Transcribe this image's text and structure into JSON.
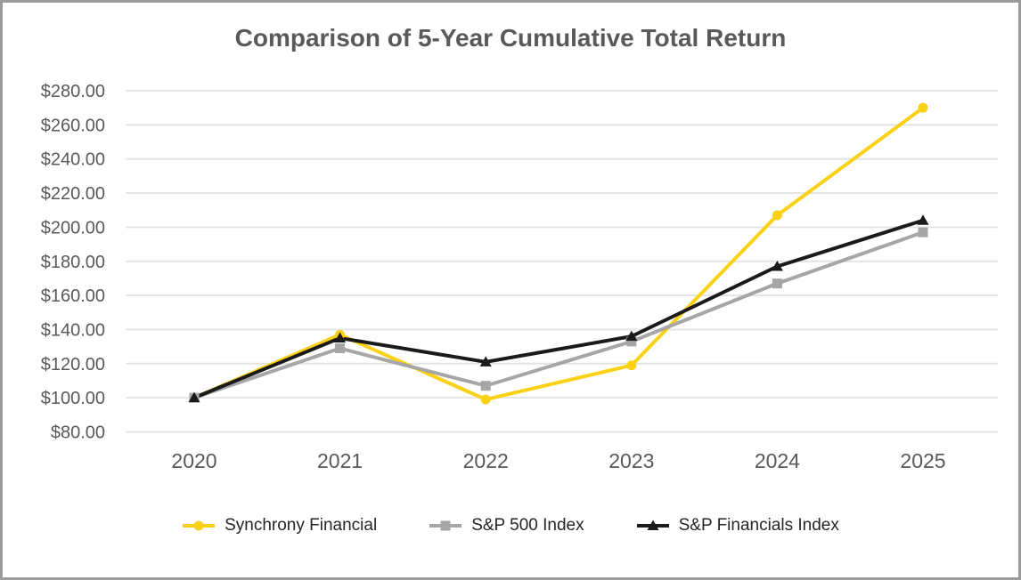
{
  "frame": {
    "border_color": "#9b9b9b",
    "background_color": "#ffffff"
  },
  "chart_data": {
    "type": "line",
    "title": "Comparison of 5-Year Cumulative Total Return",
    "title_color": "#595959",
    "categories": [
      "2020",
      "2021",
      "2022",
      "2023",
      "2024",
      "2025"
    ],
    "series": [
      {
        "name": "Synchrony Financial",
        "color": "#FBD116",
        "marker": "circle",
        "values": [
          100.0,
          137.0,
          99.0,
          119.0,
          207.0,
          270.0
        ]
      },
      {
        "name": "S&P 500 Index",
        "color": "#A6A6A6",
        "marker": "square",
        "values": [
          100.0,
          129.0,
          107.0,
          133.0,
          167.0,
          197.0
        ]
      },
      {
        "name": "S&P Financials Index",
        "color": "#1A1A1A",
        "marker": "triangle",
        "values": [
          100.0,
          135.0,
          121.0,
          136.0,
          177.0,
          204.0
        ]
      }
    ],
    "ylim": [
      80,
      280
    ],
    "ytick_step": 20,
    "ytick_labels": [
      "$280.00",
      "$260.00",
      "$240.00",
      "$220.00",
      "$200.00",
      "$180.00",
      "$160.00",
      "$140.00",
      "$120.00",
      "$100.00",
      "$80.00"
    ],
    "axis_label_color": "#595959",
    "gridline_color": "#e4e4e4",
    "grid": true,
    "legend_position": "bottom"
  }
}
